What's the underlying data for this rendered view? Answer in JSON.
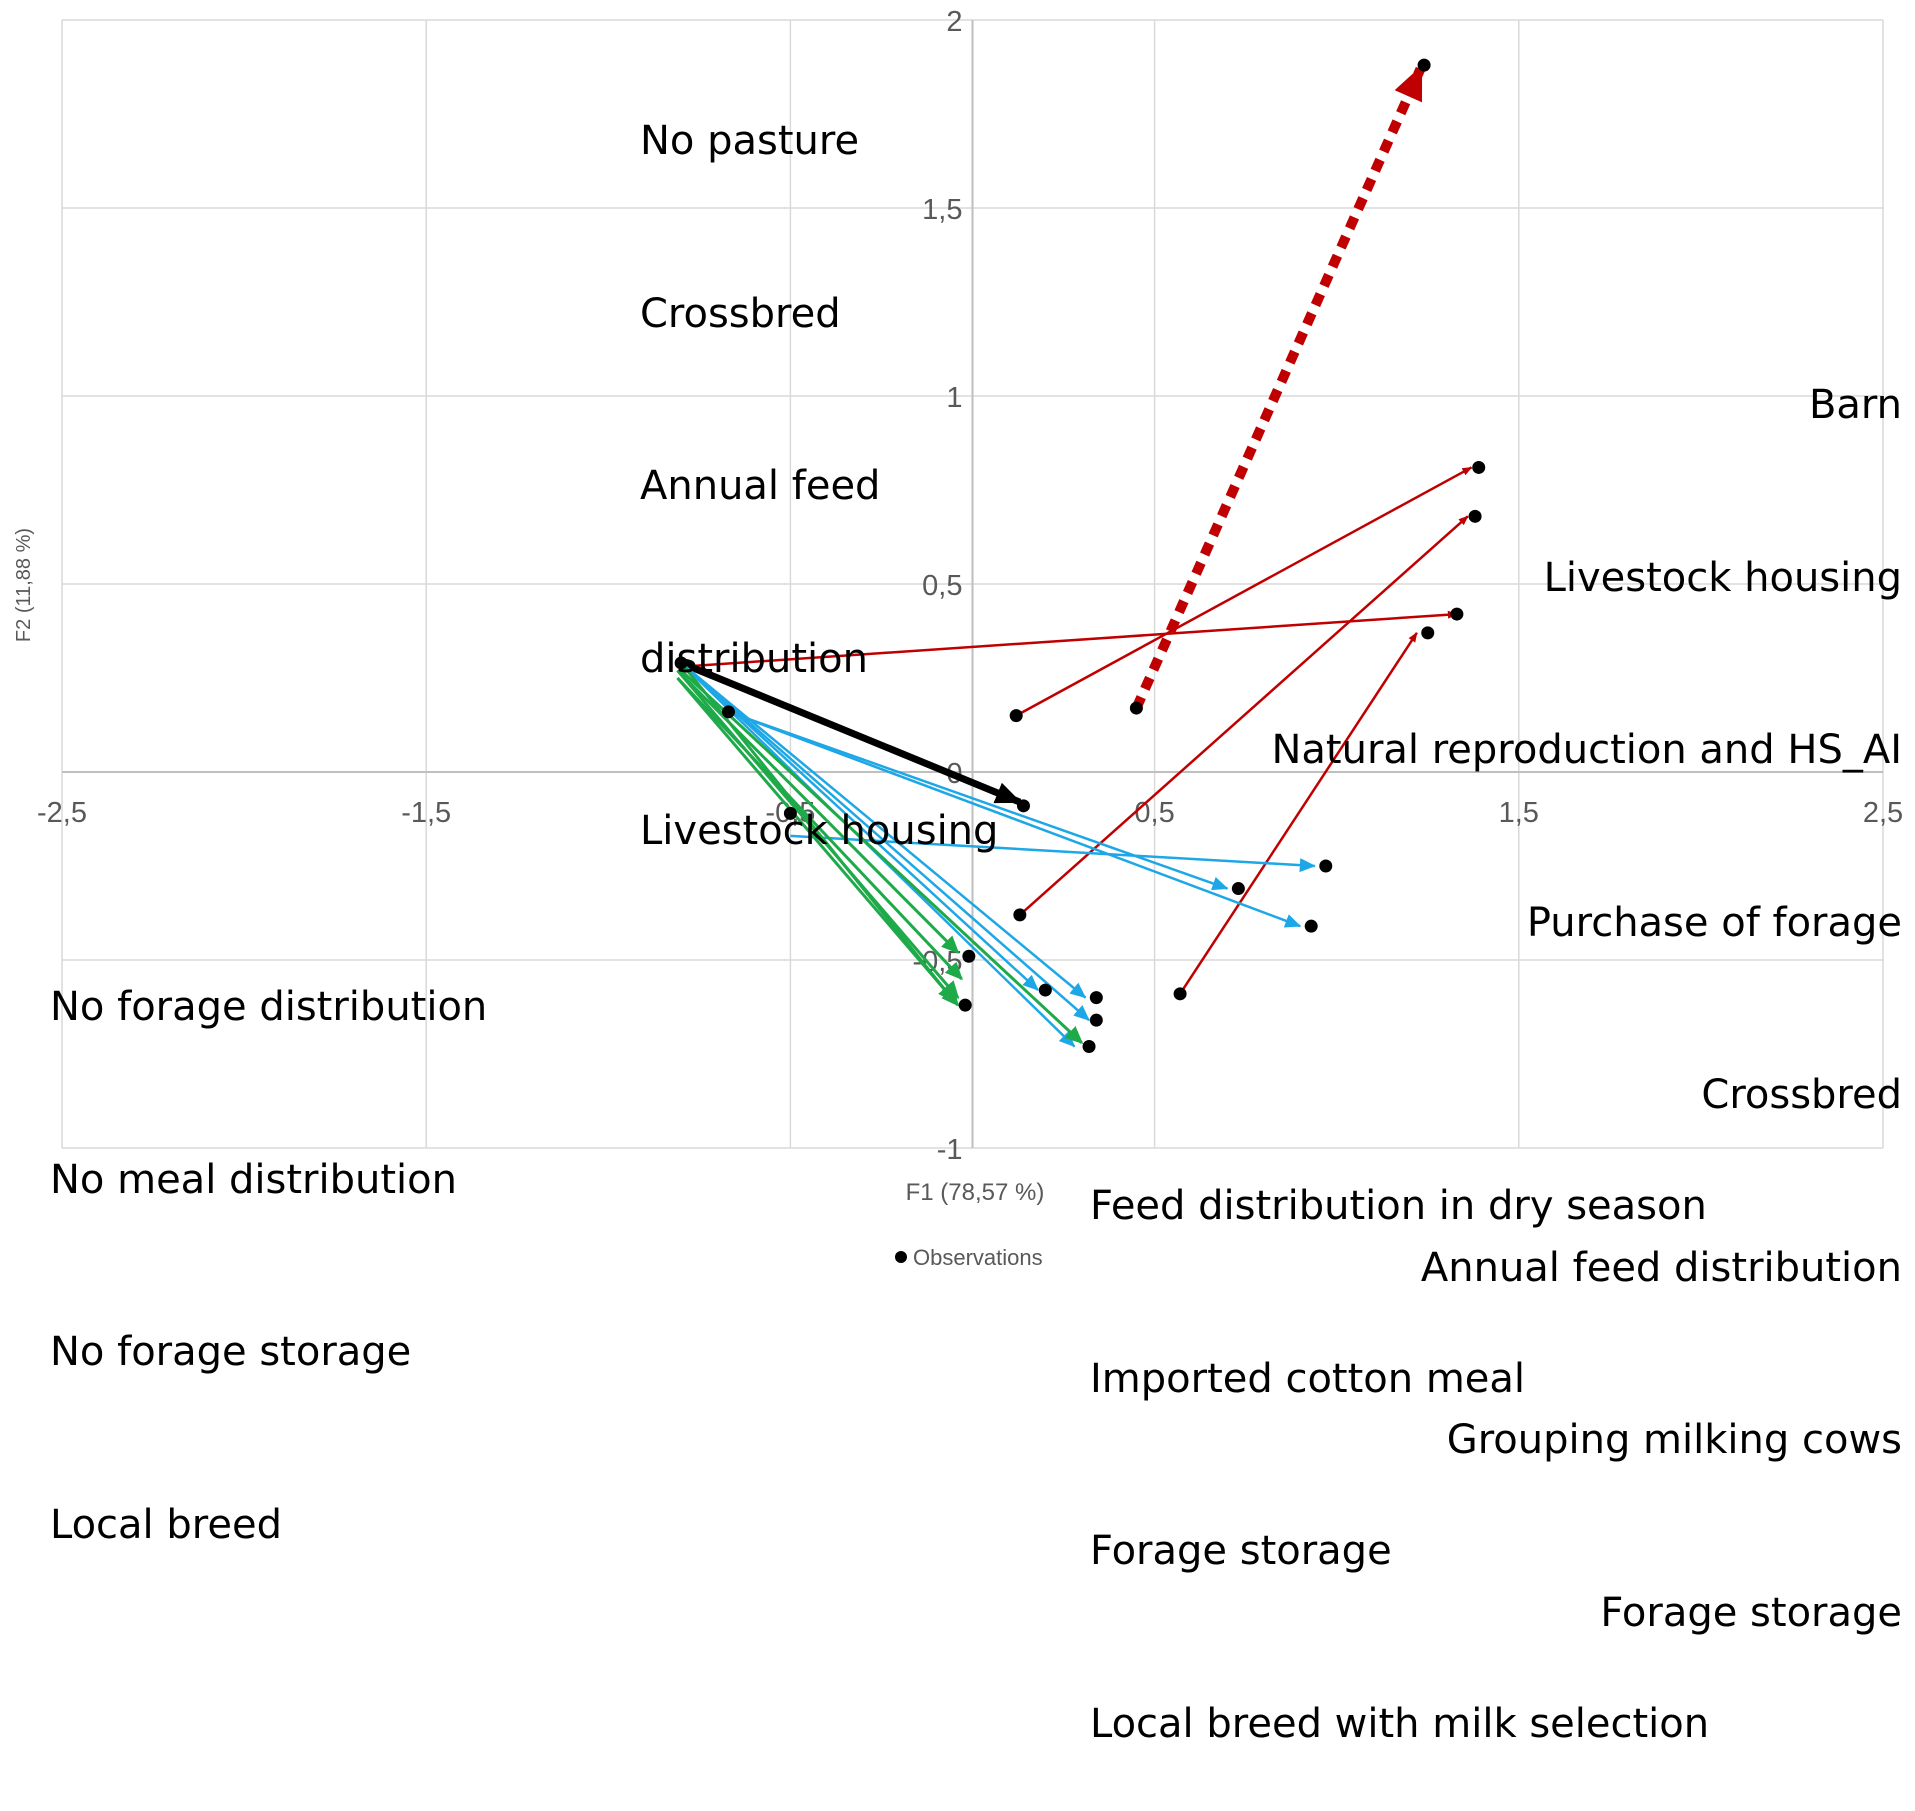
{
  "chart_data": {
    "type": "scatter",
    "xlabel": "F1 (78,57 %)",
    "ylabel": "F2 (11,88 %)",
    "xlim": [
      -2.5,
      2.5
    ],
    "ylim": [
      -1,
      2
    ],
    "x_ticks": [
      "-2,5",
      "-1,5",
      "-0,5",
      "0,5",
      "1,5",
      "2,5"
    ],
    "y_ticks": [
      "-1",
      "-0,5",
      "0",
      "0,5",
      "1",
      "1,5",
      "2"
    ],
    "grid": true,
    "legend": {
      "position": "bottom-center",
      "entries": [
        "Observations"
      ]
    },
    "colors": {
      "points": "#000000",
      "red": "#c00000",
      "blue": "#1ea7e6",
      "green": "#1faa4a",
      "black": "#000000",
      "grid": "#d9d9d9"
    },
    "observations": [
      {
        "x": -0.8,
        "y": 0.29
      },
      {
        "x": -0.67,
        "y": 0.16
      },
      {
        "x": -0.5,
        "y": -0.11
      },
      {
        "x": 0.12,
        "y": 0.15
      },
      {
        "x": 0.45,
        "y": 0.17
      },
      {
        "x": 1.24,
        "y": 1.88
      },
      {
        "x": 1.39,
        "y": 0.81
      },
      {
        "x": 1.38,
        "y": 0.68
      },
      {
        "x": 1.33,
        "y": 0.42
      },
      {
        "x": 1.25,
        "y": 0.37
      },
      {
        "x": 0.14,
        "y": -0.09
      },
      {
        "x": 0.13,
        "y": -0.38
      },
      {
        "x": 0.57,
        "y": -0.59
      },
      {
        "x": 0.97,
        "y": -0.25
      },
      {
        "x": 0.73,
        "y": -0.31
      },
      {
        "x": 0.93,
        "y": -0.41
      },
      {
        "x": -0.01,
        "y": -0.49
      },
      {
        "x": -0.02,
        "y": -0.62
      },
      {
        "x": 0.2,
        "y": -0.58
      },
      {
        "x": 0.34,
        "y": -0.6
      },
      {
        "x": 0.34,
        "y": -0.66
      },
      {
        "x": 0.32,
        "y": -0.73
      }
    ],
    "arrows": [
      {
        "color": "red-dashed",
        "from": [
          0.45,
          0.17
        ],
        "to": [
          1.23,
          1.87
        ]
      },
      {
        "color": "red",
        "from": [
          0.12,
          0.15
        ],
        "to": [
          1.37,
          0.81
        ]
      },
      {
        "color": "red",
        "from": [
          0.13,
          -0.38
        ],
        "to": [
          1.36,
          0.68
        ]
      },
      {
        "color": "red",
        "from": [
          -0.8,
          0.28
        ],
        "to": [
          1.33,
          0.42
        ]
      },
      {
        "color": "red",
        "from": [
          0.57,
          -0.59
        ],
        "to": [
          1.22,
          0.37
        ]
      },
      {
        "color": "black",
        "from": [
          -0.8,
          0.29
        ],
        "to": [
          0.13,
          -0.08
        ]
      },
      {
        "color": "blue",
        "from": [
          -0.67,
          0.16
        ],
        "to": [
          0.7,
          -0.31
        ]
      },
      {
        "color": "blue",
        "from": [
          -0.67,
          0.16
        ],
        "to": [
          0.9,
          -0.41
        ]
      },
      {
        "color": "blue",
        "from": [
          -0.5,
          -0.17
        ],
        "to": [
          0.94,
          -0.25
        ]
      },
      {
        "color": "blue",
        "from": [
          -0.8,
          0.29
        ],
        "to": [
          0.18,
          -0.58
        ]
      },
      {
        "color": "blue",
        "from": [
          -0.8,
          0.29
        ],
        "to": [
          0.31,
          -0.6
        ]
      },
      {
        "color": "blue",
        "from": [
          -0.8,
          0.29
        ],
        "to": [
          0.32,
          -0.66
        ]
      },
      {
        "color": "blue",
        "from": [
          -0.8,
          0.29
        ],
        "to": [
          0.28,
          -0.73
        ]
      },
      {
        "color": "green",
        "from": [
          -0.81,
          0.27
        ],
        "to": [
          -0.04,
          -0.48
        ]
      },
      {
        "color": "green",
        "from": [
          -0.81,
          0.25
        ],
        "to": [
          -0.03,
          -0.55
        ]
      },
      {
        "color": "green",
        "from": [
          -0.81,
          0.27
        ],
        "to": [
          -0.04,
          -0.6
        ]
      },
      {
        "color": "green",
        "from": [
          -0.81,
          0.25
        ],
        "to": [
          -0.04,
          -0.62
        ]
      },
      {
        "color": "green",
        "from": [
          -0.8,
          0.29
        ],
        "to": [
          -0.05,
          -0.61
        ]
      },
      {
        "color": "green",
        "from": [
          -0.8,
          0.27
        ],
        "to": [
          0.3,
          -0.72
        ]
      }
    ],
    "annotations": {
      "top_center": [
        "No pasture",
        "Crossbred",
        "Annual feed",
        "distribution",
        "Livestock housing"
      ],
      "right": [
        "Barn",
        "Livestock housing",
        "Natural reproduction and HS_AI",
        "Purchase of forage",
        "Crossbred",
        "Annual feed distribution",
        "Grouping milking cows",
        "Forage storage"
      ],
      "left": [
        "No forage distribution",
        "No meal distribution",
        "No forage storage",
        "Local breed"
      ],
      "bottom": [
        "Feed distribution in dry season",
        "Imported cotton meal",
        "Forage storage",
        "Local breed with milk selection"
      ]
    }
  }
}
